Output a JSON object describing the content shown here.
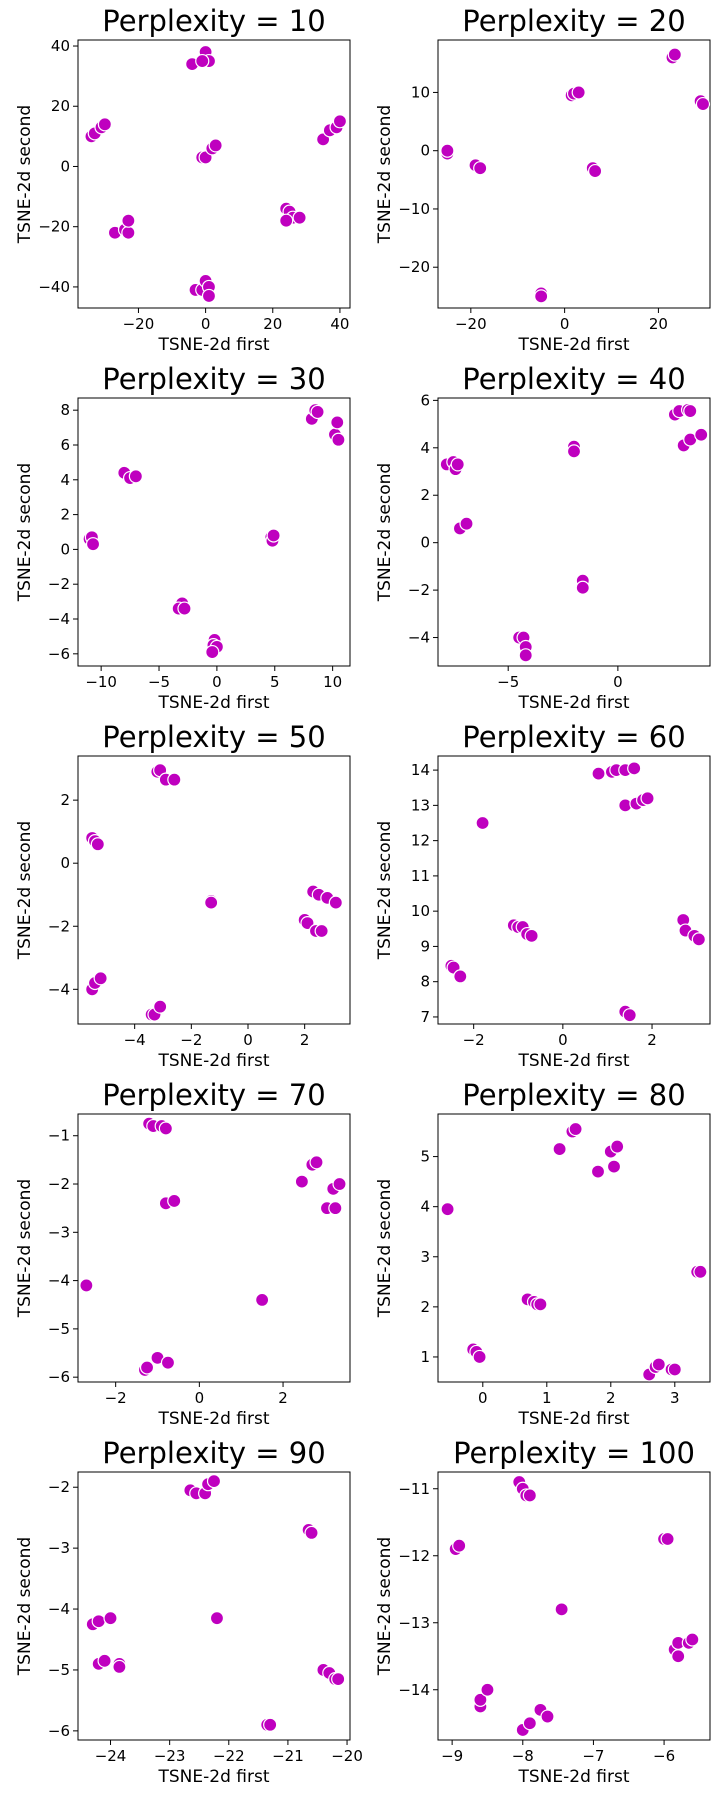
{
  "point_color": "#BF00BF",
  "point_edge_color": "#ffffff",
  "chart_data": [
    {
      "type": "scatter",
      "title": "Perplexity = 10",
      "xlabel": "TSNE-2d first",
      "ylabel": "TSNE-2d second",
      "xlim": [
        -38,
        43
      ],
      "ylim": [
        -47,
        42
      ],
      "xticks": [
        -20,
        0,
        20,
        40
      ],
      "yticks": [
        -40,
        -20,
        0,
        20,
        40
      ],
      "points": [
        [
          -4,
          34
        ],
        [
          0,
          38
        ],
        [
          1,
          35
        ],
        [
          -1,
          35
        ],
        [
          -1,
          3
        ],
        [
          0,
          3
        ],
        [
          2,
          6
        ],
        [
          3,
          7
        ],
        [
          -34,
          10
        ],
        [
          -33,
          11
        ],
        [
          -31,
          13
        ],
        [
          -30,
          14
        ],
        [
          -27,
          -22
        ],
        [
          -24,
          -21
        ],
        [
          -23,
          -22
        ],
        [
          -23,
          -18
        ],
        [
          35,
          9
        ],
        [
          37,
          12
        ],
        [
          39,
          13
        ],
        [
          40,
          15
        ],
        [
          24,
          -14
        ],
        [
          25,
          -15
        ],
        [
          26,
          -17
        ],
        [
          28,
          -17
        ],
        [
          24,
          -18
        ],
        [
          -3,
          -41
        ],
        [
          -1,
          -41
        ],
        [
          0,
          -38
        ],
        [
          1,
          -40
        ],
        [
          1,
          -43
        ]
      ]
    },
    {
      "type": "scatter",
      "title": "Perplexity = 20",
      "xlabel": "TSNE-2d first",
      "ylabel": "TSNE-2d second",
      "xlim": [
        -27,
        31
      ],
      "ylim": [
        -27,
        19
      ],
      "xticks": [
        -20,
        0,
        20
      ],
      "yticks": [
        -20,
        -10,
        0,
        10
      ],
      "points": [
        [
          -25,
          -0.5
        ],
        [
          -25,
          0
        ],
        [
          -19,
          -2.5
        ],
        [
          -18,
          -3
        ],
        [
          1.5,
          9.5
        ],
        [
          2,
          9.8
        ],
        [
          3,
          10
        ],
        [
          23,
          16
        ],
        [
          23.5,
          16.5
        ],
        [
          29,
          8.5
        ],
        [
          29.5,
          8
        ],
        [
          6,
          -3
        ],
        [
          6.5,
          -3.5
        ],
        [
          -5,
          -24.5
        ],
        [
          -5,
          -25
        ]
      ]
    },
    {
      "type": "scatter",
      "title": "Perplexity = 30",
      "xlabel": "TSNE-2d first",
      "ylabel": "TSNE-2d second",
      "xlim": [
        -12,
        11.5
      ],
      "ylim": [
        -6.7,
        8.7
      ],
      "xticks": [
        -10,
        -5,
        0,
        5,
        10
      ],
      "yticks": [
        -6,
        -4,
        -2,
        0,
        2,
        4,
        6,
        8
      ],
      "points": [
        [
          -8,
          4.4
        ],
        [
          -7.5,
          4.1
        ],
        [
          -7,
          4.2
        ],
        [
          -11,
          0.6
        ],
        [
          -10.8,
          0.7
        ],
        [
          -10.7,
          0.3
        ],
        [
          -3,
          -3.1
        ],
        [
          -3.3,
          -3.4
        ],
        [
          -2.8,
          -3.4
        ],
        [
          -0.2,
          -5.2
        ],
        [
          -0.3,
          -5.5
        ],
        [
          0,
          -5.6
        ],
        [
          -0.4,
          -5.9
        ],
        [
          4.7,
          0.7
        ],
        [
          4.8,
          0.5
        ],
        [
          4.9,
          0.8
        ],
        [
          8.2,
          7.5
        ],
        [
          8.5,
          8
        ],
        [
          8.7,
          7.9
        ],
        [
          10.2,
          6.6
        ],
        [
          10.4,
          7.3
        ],
        [
          10.5,
          6.3
        ]
      ]
    },
    {
      "type": "scatter",
      "title": "Perplexity = 40",
      "xlabel": "TSNE-2d first",
      "ylabel": "TSNE-2d second",
      "xlim": [
        -8.2,
        4.2
      ],
      "ylim": [
        -5.2,
        6.1
      ],
      "xticks": [
        -5,
        0
      ],
      "yticks": [
        -4,
        -2,
        0,
        2,
        4,
        6
      ],
      "points": [
        [
          -7.8,
          3.3
        ],
        [
          -7.5,
          3.4
        ],
        [
          -7.4,
          3.1
        ],
        [
          -7.3,
          3.3
        ],
        [
          -7.2,
          0.6
        ],
        [
          -6.9,
          0.8
        ],
        [
          -2,
          4.05
        ],
        [
          -2,
          3.85
        ],
        [
          -1.6,
          -1.6
        ],
        [
          -1.6,
          -1.9
        ],
        [
          -4.5,
          -4.0
        ],
        [
          -4.3,
          -4.0
        ],
        [
          -4.2,
          -4.4
        ],
        [
          -4.2,
          -4.75
        ],
        [
          2.6,
          5.4
        ],
        [
          2.8,
          5.55
        ],
        [
          3.2,
          5.6
        ],
        [
          3.3,
          5.55
        ],
        [
          3.0,
          4.1
        ],
        [
          3.3,
          4.35
        ],
        [
          3.8,
          4.55
        ]
      ]
    },
    {
      "type": "scatter",
      "title": "Perplexity = 50",
      "xlabel": "TSNE-2d first",
      "ylabel": "TSNE-2d second",
      "xlim": [
        -6,
        3.6
      ],
      "ylim": [
        -5.1,
        3.4
      ],
      "xticks": [
        -4,
        -2,
        0,
        2
      ],
      "yticks": [
        -4,
        -2,
        0,
        2
      ],
      "points": [
        [
          -3.2,
          2.9
        ],
        [
          -3.1,
          2.95
        ],
        [
          -2.9,
          2.65
        ],
        [
          -2.6,
          2.65
        ],
        [
          -5.5,
          0.8
        ],
        [
          -5.4,
          0.7
        ],
        [
          -5.3,
          0.6
        ],
        [
          -1.3,
          -1.2
        ],
        [
          -1.3,
          -1.25
        ],
        [
          -5.5,
          -4
        ],
        [
          -5.4,
          -3.8
        ],
        [
          -5.2,
          -3.65
        ],
        [
          -3.4,
          -4.8
        ],
        [
          -3.3,
          -4.8
        ],
        [
          -3.1,
          -4.55
        ],
        [
          2,
          -1.8
        ],
        [
          2.1,
          -1.9
        ],
        [
          2.3,
          -0.9
        ],
        [
          2.4,
          -2.15
        ],
        [
          2.5,
          -1
        ],
        [
          2.6,
          -2.15
        ],
        [
          2.8,
          -1.1
        ],
        [
          3.1,
          -1.25
        ]
      ]
    },
    {
      "type": "scatter",
      "title": "Perplexity = 60",
      "xlabel": "TSNE-2d first",
      "ylabel": "TSNE-2d second",
      "xlim": [
        -2.8,
        3.3
      ],
      "ylim": [
        6.8,
        14.4
      ],
      "xticks": [
        -2,
        0,
        2
      ],
      "yticks": [
        7,
        8,
        9,
        10,
        11,
        12,
        13,
        14
      ],
      "points": [
        [
          -2.5,
          8.45
        ],
        [
          -2.45,
          8.4
        ],
        [
          -2.3,
          8.15
        ],
        [
          -1.8,
          12.5
        ],
        [
          -1.1,
          9.6
        ],
        [
          -1.0,
          9.55
        ],
        [
          -0.9,
          9.55
        ],
        [
          -0.8,
          9.35
        ],
        [
          -0.7,
          9.3
        ],
        [
          0.8,
          13.9
        ],
        [
          1.1,
          13.95
        ],
        [
          1.2,
          14.0
        ],
        [
          1.4,
          13.0
        ],
        [
          1.4,
          14.0
        ],
        [
          1.4,
          7.15
        ],
        [
          1.5,
          7.05
        ],
        [
          1.6,
          14.05
        ],
        [
          1.65,
          13.05
        ],
        [
          1.8,
          13.15
        ],
        [
          1.9,
          13.2
        ],
        [
          2.7,
          9.75
        ],
        [
          2.75,
          9.45
        ],
        [
          2.95,
          9.3
        ],
        [
          3.05,
          9.2
        ]
      ]
    },
    {
      "type": "scatter",
      "title": "Perplexity = 70",
      "xlabel": "TSNE-2d first",
      "ylabel": "TSNE-2d second",
      "xlim": [
        -2.9,
        3.6
      ],
      "ylim": [
        -6.1,
        -0.55
      ],
      "xticks": [
        -2,
        0,
        2
      ],
      "yticks": [
        -6,
        -5,
        -4,
        -3,
        -2,
        -1
      ],
      "points": [
        [
          -2.7,
          -4.1
        ],
        [
          -1.2,
          -0.75
        ],
        [
          -1.1,
          -0.8
        ],
        [
          -0.9,
          -0.8
        ],
        [
          -0.8,
          -0.85
        ],
        [
          -0.8,
          -2.4
        ],
        [
          -0.6,
          -2.35
        ],
        [
          -1.3,
          -5.85
        ],
        [
          -1.25,
          -5.8
        ],
        [
          -1.0,
          -5.6
        ],
        [
          -0.75,
          -5.7
        ],
        [
          1.5,
          -4.4
        ],
        [
          2.45,
          -1.95
        ],
        [
          2.7,
          -1.6
        ],
        [
          2.8,
          -1.55
        ],
        [
          3.05,
          -2.5
        ],
        [
          3.2,
          -2.1
        ],
        [
          3.25,
          -2.5
        ],
        [
          3.35,
          -2.0
        ]
      ]
    },
    {
      "type": "scatter",
      "title": "Perplexity = 80",
      "xlabel": "TSNE-2d first",
      "ylabel": "TSNE-2d second",
      "xlim": [
        -0.7,
        3.55
      ],
      "ylim": [
        0.5,
        5.85
      ],
      "xticks": [
        0,
        1,
        2,
        3
      ],
      "yticks": [
        1,
        2,
        3,
        4,
        5
      ],
      "points": [
        [
          -0.55,
          3.95
        ],
        [
          -0.15,
          1.15
        ],
        [
          -0.1,
          1.1
        ],
        [
          -0.05,
          1.0
        ],
        [
          0.7,
          2.15
        ],
        [
          0.8,
          2.1
        ],
        [
          0.85,
          2.05
        ],
        [
          0.9,
          2.05
        ],
        [
          1.2,
          5.15
        ],
        [
          1.4,
          5.5
        ],
        [
          1.45,
          5.55
        ],
        [
          1.8,
          4.7
        ],
        [
          2.0,
          5.1
        ],
        [
          2.05,
          4.8
        ],
        [
          2.1,
          5.2
        ],
        [
          2.6,
          0.65
        ],
        [
          2.7,
          0.8
        ],
        [
          2.75,
          0.85
        ],
        [
          2.95,
          0.75
        ],
        [
          3.0,
          0.75
        ],
        [
          3.35,
          2.7
        ],
        [
          3.4,
          2.7
        ]
      ]
    },
    {
      "type": "scatter",
      "title": "Perplexity = 90",
      "xlabel": "TSNE-2d first",
      "ylabel": "TSNE-2d second",
      "xlim": [
        -24.55,
        -19.95
      ],
      "ylim": [
        -6.15,
        -1.75
      ],
      "xticks": [
        -24,
        -23,
        -22,
        -21,
        -20
      ],
      "yticks": [
        -6,
        -5,
        -4,
        -3,
        -2
      ],
      "points": [
        [
          -24.3,
          -4.25
        ],
        [
          -24.2,
          -4.2
        ],
        [
          -24.2,
          -4.9
        ],
        [
          -24.1,
          -4.85
        ],
        [
          -24.0,
          -4.15
        ],
        [
          -23.85,
          -4.9
        ],
        [
          -23.85,
          -4.95
        ],
        [
          -22.65,
          -2.05
        ],
        [
          -22.55,
          -2.1
        ],
        [
          -22.4,
          -2.1
        ],
        [
          -22.35,
          -1.95
        ],
        [
          -22.25,
          -1.9
        ],
        [
          -22.2,
          -4.15
        ],
        [
          -21.35,
          -5.9
        ],
        [
          -21.3,
          -5.9
        ],
        [
          -20.65,
          -2.7
        ],
        [
          -20.6,
          -2.75
        ],
        [
          -20.4,
          -5.0
        ],
        [
          -20.3,
          -5.05
        ],
        [
          -20.2,
          -5.15
        ],
        [
          -20.15,
          -5.15
        ]
      ]
    },
    {
      "type": "scatter",
      "title": "Perplexity = 100",
      "xlabel": "TSNE-2d first",
      "ylabel": "TSNE-2d second",
      "xlim": [
        -9.2,
        -5.35
      ],
      "ylim": [
        -14.75,
        -10.75
      ],
      "xticks": [
        -9,
        -8,
        -7,
        -6
      ],
      "yticks": [
        -14,
        -13,
        -12,
        -11
      ],
      "points": [
        [
          -8.95,
          -11.9
        ],
        [
          -8.9,
          -11.85
        ],
        [
          -8.6,
          -14.25
        ],
        [
          -8.6,
          -14.15
        ],
        [
          -8.5,
          -14.0
        ],
        [
          -8.05,
          -10.9
        ],
        [
          -8.0,
          -11.0
        ],
        [
          -7.95,
          -11.1
        ],
        [
          -7.9,
          -11.1
        ],
        [
          -8.0,
          -14.6
        ],
        [
          -7.9,
          -14.5
        ],
        [
          -7.75,
          -14.3
        ],
        [
          -7.65,
          -14.4
        ],
        [
          -7.45,
          -12.8
        ],
        [
          -6.0,
          -11.75
        ],
        [
          -5.95,
          -11.75
        ],
        [
          -5.85,
          -13.4
        ],
        [
          -5.8,
          -13.3
        ],
        [
          -5.8,
          -13.5
        ],
        [
          -5.65,
          -13.3
        ],
        [
          -5.6,
          -13.25
        ]
      ]
    }
  ]
}
